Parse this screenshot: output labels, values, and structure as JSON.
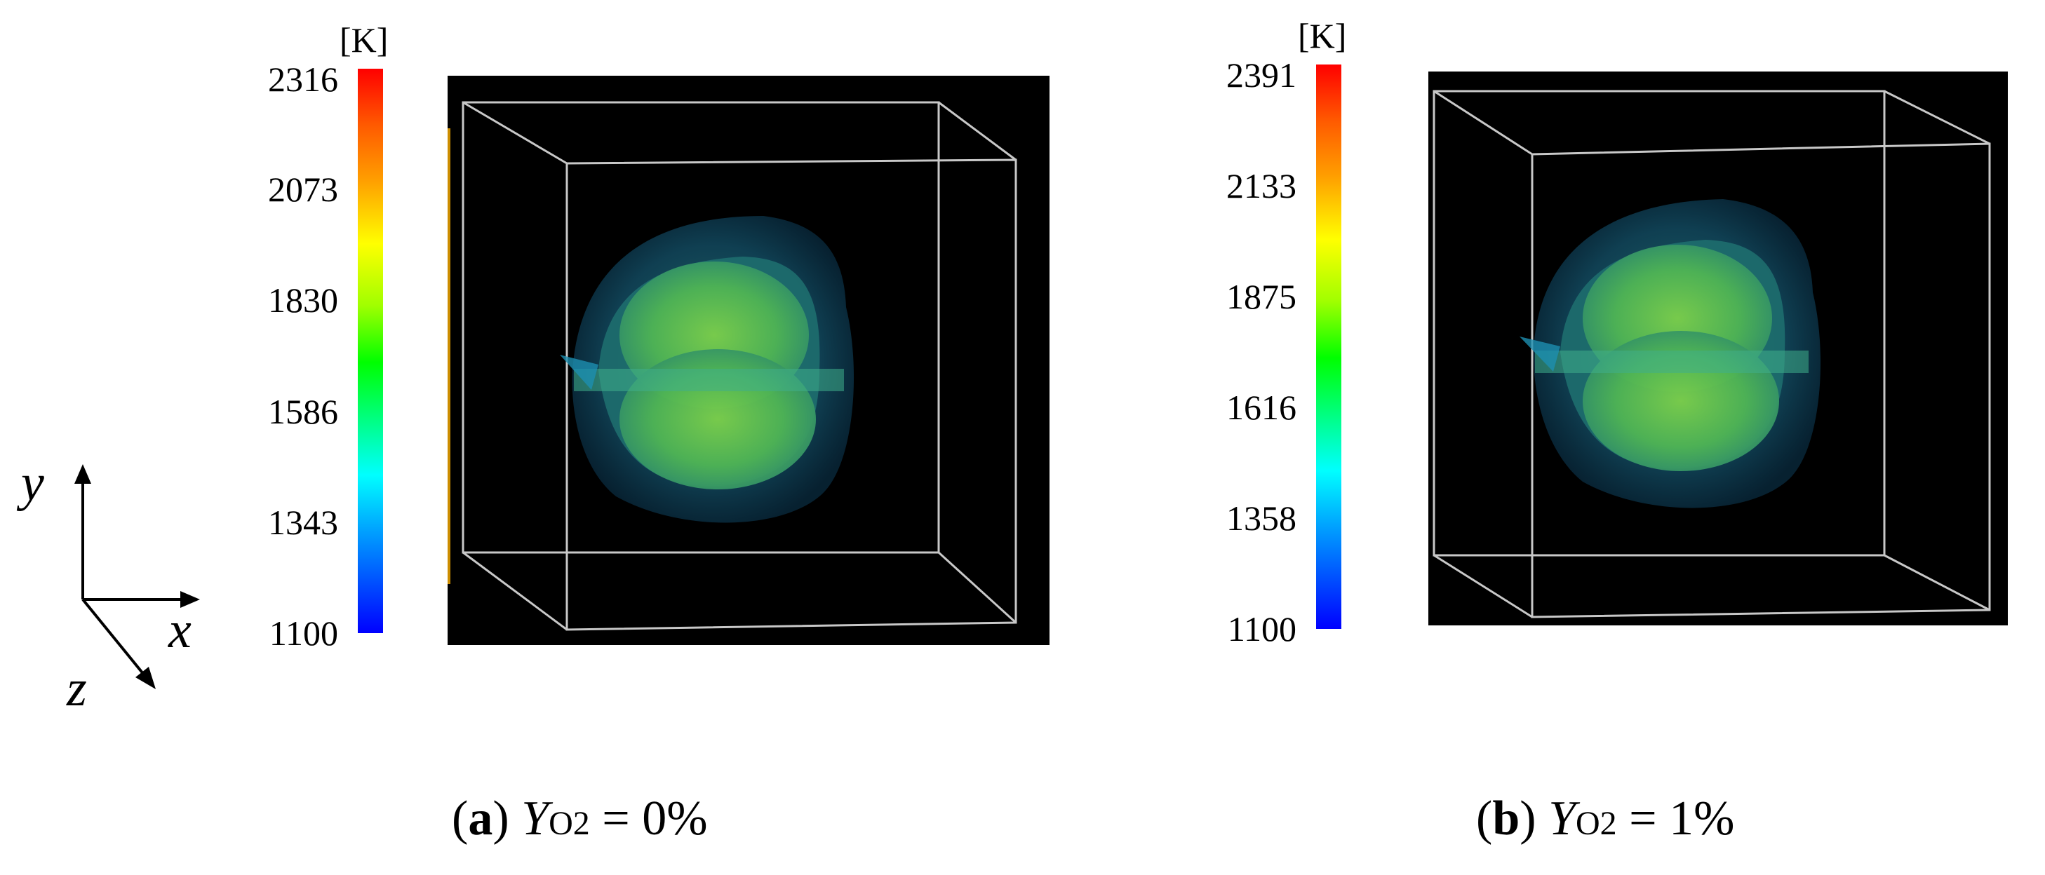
{
  "panels": [
    {
      "letter": "a",
      "variable": "Y",
      "subscript": "O2",
      "condition": " = 0%",
      "colorbar": {
        "unit": "[K]",
        "ticks": [
          "2316",
          "2073",
          "1830",
          "1586",
          "1343",
          "1100"
        ],
        "max": 2316,
        "min": 1100
      }
    },
    {
      "letter": "b",
      "variable": "Y",
      "subscript": "O2",
      "condition": " = 1%",
      "colorbar": {
        "unit": "[K]",
        "ticks": [
          "2391",
          "2133",
          "1875",
          "1616",
          "1358",
          "1100"
        ],
        "max": 2391,
        "min": 1100
      }
    }
  ],
  "axes": {
    "y": "y",
    "x": "x",
    "z": "z"
  },
  "colors": {
    "background": "#000000",
    "box_edges": "#c8c8c8",
    "flame_outer": "#0b3a52",
    "flame_core": "#55c04a",
    "colormap": [
      "#ff0000",
      "#ffff00",
      "#00ff00",
      "#00ffff",
      "#0000ff"
    ]
  }
}
